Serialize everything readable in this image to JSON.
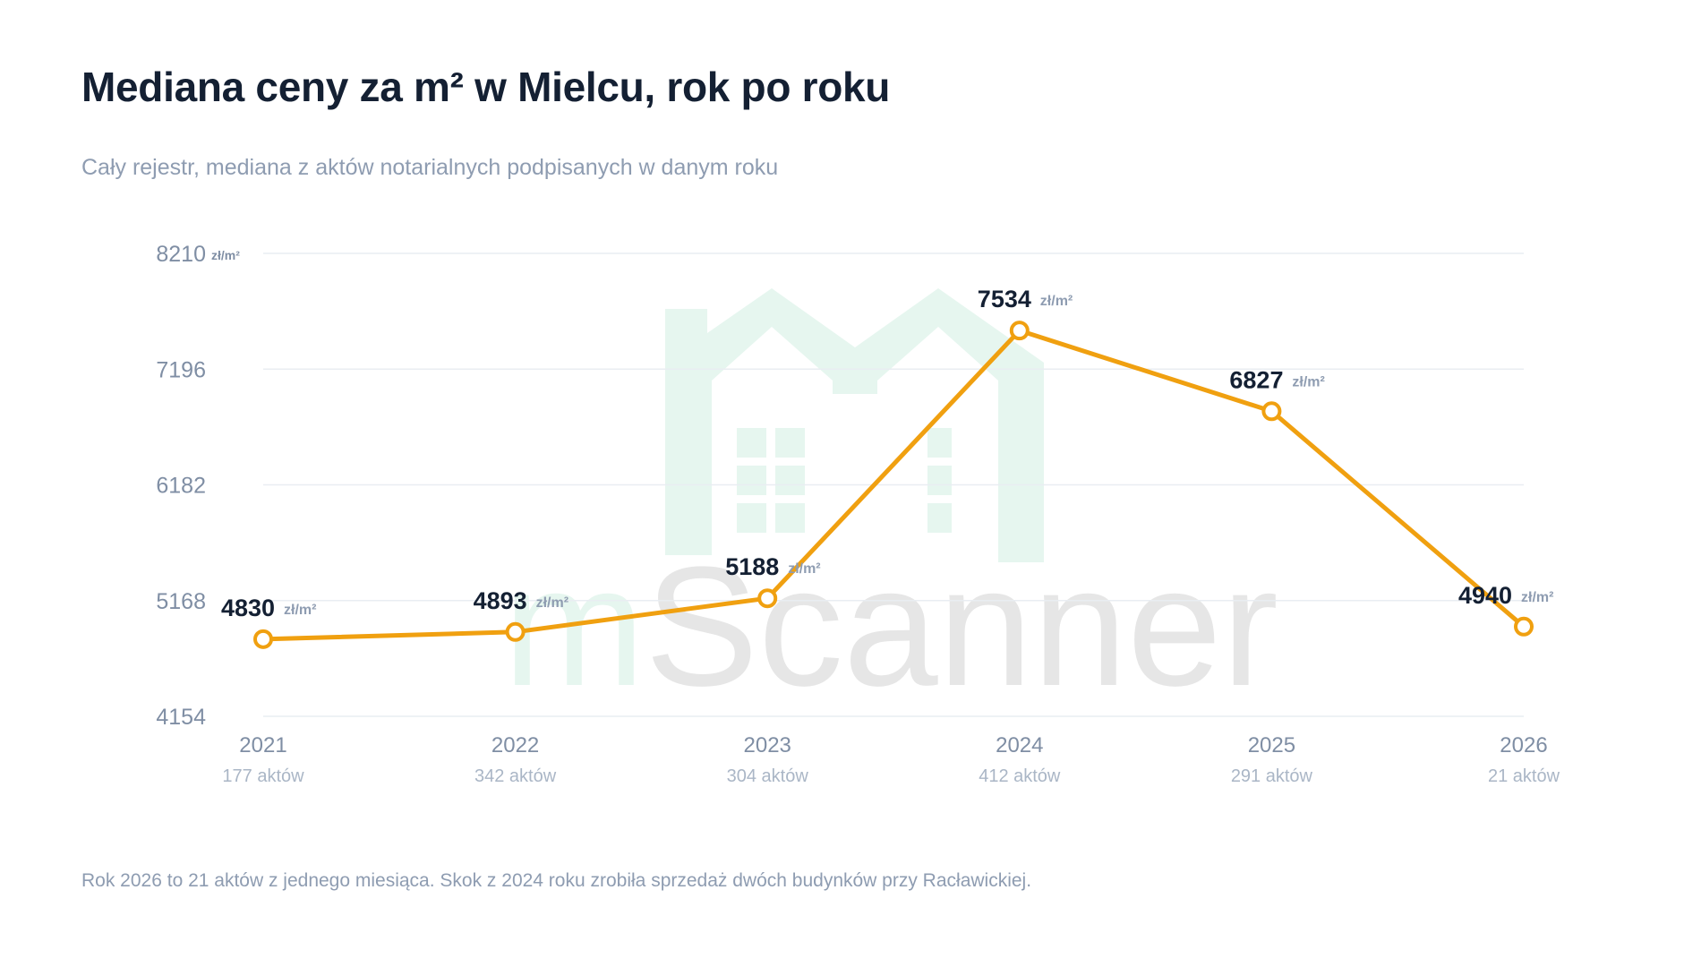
{
  "header": {
    "title": "Mediana ceny za m² w Mielcu, rok po roku",
    "subtitle": "Cały rejestr, mediana z aktów notarialnych podpisanych w danym roku"
  },
  "footer": {
    "note": "Rok 2026 to 21 aktów z jednego miesiąca. Skok z 2024 roku zrobiła sprzedaż dwóch budynków przy Racławickiej."
  },
  "watermark": {
    "text_prefix": "m",
    "text_rest": "Scanner",
    "prefix_color": "#e6f6ef",
    "rest_color": "#e6e6e6",
    "logo_color": "#e6f6ef",
    "icon": "house-logo-icon"
  },
  "chart_data": {
    "type": "line",
    "title": "Mediana ceny za m² w Mielcu, rok po roku",
    "subtitle": "Cały rejestr, mediana z aktów notarialnych podpisanych w danym roku",
    "unit": "zł/m²",
    "categories": [
      "2021",
      "2022",
      "2023",
      "2024",
      "2025",
      "2026"
    ],
    "category_sublabels": [
      "177 aktów",
      "342 aktów",
      "304 aktów",
      "412 aktów",
      "291 aktów",
      "21 aktów"
    ],
    "series": [
      {
        "values": [
          4830,
          4893,
          5188,
          7534,
          6827,
          4940
        ],
        "color": "#f0a010"
      }
    ],
    "y_ticks": [
      4154,
      5168,
      6182,
      7196,
      8210
    ],
    "ylim": [
      4154,
      8210
    ],
    "grid": true,
    "legend": "none"
  }
}
